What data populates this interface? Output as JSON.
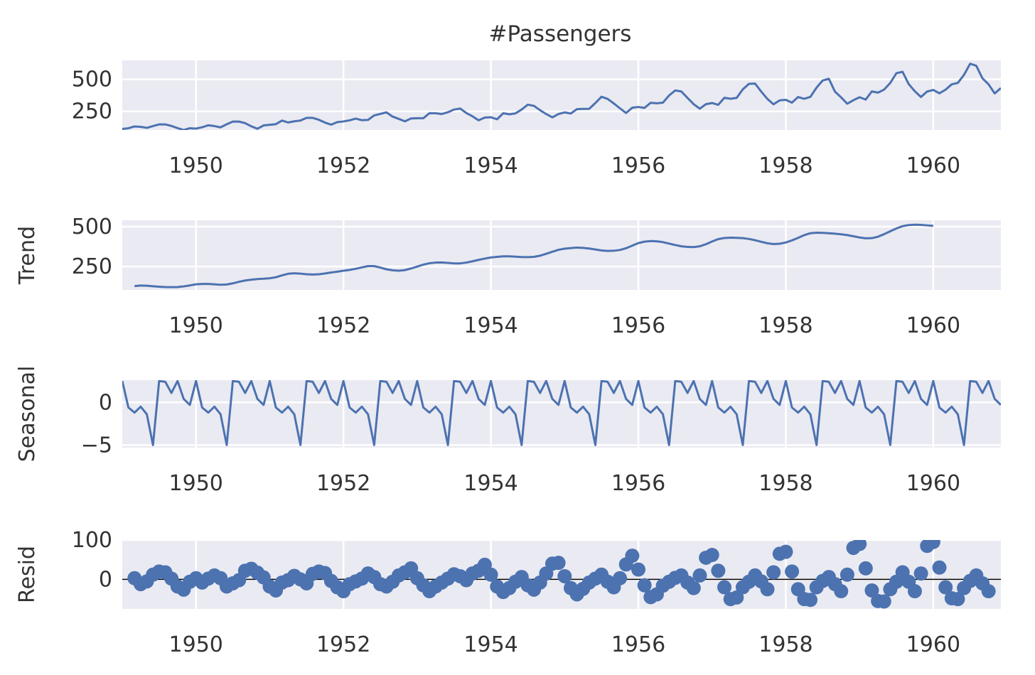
{
  "title": "#Passengers",
  "colors": {
    "line": "#4c72b0",
    "panel_bg": "#eaeaf2",
    "grid": "#ffffff",
    "zero_line": "#000000"
  },
  "chart_data": [
    {
      "type": "line",
      "ylabel": "",
      "xlim": [
        1949,
        1960.917
      ],
      "ylim": [
        104,
        648
      ],
      "x_ticks": [
        1950,
        1952,
        1954,
        1956,
        1958,
        1960
      ],
      "x_tick_labels": [
        "1950",
        "1952",
        "1954",
        "1956",
        "1958",
        "1960"
      ],
      "y_ticks": [
        250,
        500
      ],
      "y_tick_labels": [
        "250",
        "500"
      ],
      "grid": true,
      "x_start": "1949-01",
      "x_step": "month",
      "values": [
        112,
        118,
        132,
        129,
        121,
        135,
        148,
        148,
        136,
        119,
        104,
        118,
        115,
        126,
        141,
        135,
        125,
        149,
        170,
        170,
        158,
        133,
        114,
        140,
        145,
        150,
        178,
        163,
        172,
        178,
        199,
        199,
        184,
        162,
        146,
        166,
        171,
        180,
        193,
        181,
        183,
        218,
        230,
        242,
        209,
        191,
        172,
        194,
        196,
        196,
        236,
        235,
        229,
        243,
        264,
        272,
        237,
        211,
        180,
        201,
        204,
        188,
        235,
        227,
        234,
        264,
        302,
        293,
        259,
        229,
        203,
        229,
        242,
        233,
        267,
        269,
        270,
        315,
        364,
        347,
        312,
        274,
        237,
        278,
        284,
        277,
        317,
        313,
        318,
        374,
        413,
        405,
        355,
        306,
        271,
        306,
        315,
        301,
        356,
        348,
        355,
        422,
        465,
        467,
        404,
        347,
        305,
        336,
        340,
        318,
        362,
        348,
        363,
        435,
        491,
        505,
        404,
        359,
        310,
        337,
        360,
        342,
        406,
        396,
        420,
        472,
        548,
        559,
        463,
        407,
        362,
        405,
        417,
        391,
        419,
        461,
        472,
        535,
        622,
        606,
        508,
        461,
        390,
        432
      ]
    },
    {
      "type": "line",
      "ylabel": "Trend",
      "xlim": [
        1949,
        1960.917
      ],
      "ylim": [
        104,
        540
      ],
      "x_ticks": [
        1950,
        1952,
        1954,
        1956,
        1958,
        1960
      ],
      "x_tick_labels": [
        "1950",
        "1952",
        "1954",
        "1956",
        "1958",
        "1960"
      ],
      "y_ticks": [
        250,
        500
      ],
      "y_tick_labels": [
        "250",
        "500"
      ],
      "grid": true,
      "x_start": "1949-03",
      "x_step": "month",
      "values": [
        128,
        131,
        130,
        127,
        124,
        122,
        121,
        122,
        126,
        132,
        139,
        141,
        141,
        139,
        136,
        138,
        145,
        155,
        163,
        168,
        172,
        174,
        177,
        183,
        195,
        205,
        208,
        206,
        202,
        200,
        202,
        207,
        213,
        218,
        224,
        229,
        236,
        245,
        253,
        253,
        244,
        233,
        227,
        224,
        228,
        238,
        250,
        262,
        271,
        275,
        276,
        273,
        270,
        270,
        275,
        283,
        292,
        300,
        307,
        311,
        314,
        314,
        312,
        310,
        309,
        311,
        318,
        330,
        343,
        355,
        362,
        366,
        369,
        367,
        363,
        357,
        351,
        348,
        349,
        354,
        365,
        381,
        397,
        406,
        410,
        408,
        403,
        394,
        385,
        377,
        373,
        372,
        377,
        390,
        407,
        422,
        429,
        431,
        430,
        428,
        423,
        415,
        405,
        396,
        391,
        393,
        401,
        414,
        430,
        447,
        459,
        462,
        461,
        459,
        456,
        452,
        447,
        440,
        432,
        427,
        428,
        437,
        453,
        471,
        489,
        503,
        510,
        512,
        511,
        508,
        505
      ]
    },
    {
      "type": "line",
      "ylabel": "Seasonal",
      "xlim": [
        1949,
        1960.917
      ],
      "ylim": [
        -5.3,
        2.6
      ],
      "x_ticks": [
        1950,
        1952,
        1954,
        1956,
        1958,
        1960
      ],
      "x_tick_labels": [
        "1950",
        "1952",
        "1954",
        "1956",
        "1958",
        "1960"
      ],
      "y_ticks": [
        -5,
        0
      ],
      "y_tick_labels": [
        "−5",
        "0"
      ],
      "grid": true,
      "x_start": "1949-01",
      "x_step": "month",
      "values": [
        2.5,
        -0.6,
        -1.2,
        -0.5,
        -1.4,
        -5.0,
        2.5,
        2.4,
        1.1,
        2.5,
        0.4,
        -0.3,
        2.5,
        -0.6,
        -1.2,
        -0.5,
        -1.4,
        -5.0,
        2.5,
        2.4,
        1.1,
        2.5,
        0.4,
        -0.3,
        2.5,
        -0.6,
        -1.2,
        -0.5,
        -1.4,
        -5.0,
        2.5,
        2.4,
        1.1,
        2.5,
        0.4,
        -0.3,
        2.5,
        -0.6,
        -1.2,
        -0.5,
        -1.4,
        -5.0,
        2.5,
        2.4,
        1.1,
        2.5,
        0.4,
        -0.3,
        2.5,
        -0.6,
        -1.2,
        -0.5,
        -1.4,
        -5.0,
        2.5,
        2.4,
        1.1,
        2.5,
        0.4,
        -0.3,
        2.5,
        -0.6,
        -1.2,
        -0.5,
        -1.4,
        -5.0,
        2.5,
        2.4,
        1.1,
        2.5,
        0.4,
        -0.3,
        2.5,
        -0.6,
        -1.2,
        -0.5,
        -1.4,
        -5.0,
        2.5,
        2.4,
        1.1,
        2.5,
        0.4,
        -0.3,
        2.5,
        -0.6,
        -1.2,
        -0.5,
        -1.4,
        -5.0,
        2.5,
        2.4,
        1.1,
        2.5,
        0.4,
        -0.3,
        2.5,
        -0.6,
        -1.2,
        -0.5,
        -1.4,
        -5.0,
        2.5,
        2.4,
        1.1,
        2.5,
        0.4,
        -0.3,
        2.5,
        -0.6,
        -1.2,
        -0.5,
        -1.4,
        -5.0,
        2.5,
        2.4,
        1.1,
        2.5,
        0.4,
        -0.3,
        2.5,
        -0.6,
        -1.2,
        -0.5,
        -1.4,
        -5.0,
        2.5,
        2.4,
        1.1,
        2.5,
        0.4,
        -0.3,
        2.5,
        -0.6,
        -1.2,
        -0.5,
        -1.4,
        -5.0,
        2.5,
        2.4,
        1.1,
        2.5,
        0.4,
        -0.3
      ]
    },
    {
      "type": "scatter",
      "ylabel": "Resid",
      "xlim": [
        1949,
        1960.917
      ],
      "ylim": [
        -75,
        100
      ],
      "x_ticks": [
        1950,
        1952,
        1954,
        1956,
        1958,
        1960
      ],
      "x_tick_labels": [
        "1950",
        "1952",
        "1954",
        "1956",
        "1958",
        "1960"
      ],
      "y_ticks": [
        0,
        100
      ],
      "y_tick_labels": [
        "0",
        "100"
      ],
      "grid": true,
      "zero_line": true,
      "x_start": "1949-03",
      "x_step": "month",
      "values": [
        3,
        -12,
        -5,
        12,
        20,
        18,
        2,
        -18,
        -26,
        -6,
        3,
        -8,
        2,
        10,
        3,
        -18,
        -10,
        -2,
        22,
        27,
        17,
        5,
        -18,
        -28,
        -8,
        -2,
        9,
        0,
        -10,
        14,
        20,
        16,
        -4,
        -20,
        -30,
        -12,
        -5,
        2,
        15,
        6,
        -12,
        -18,
        -6,
        10,
        18,
        28,
        3,
        -15,
        -30,
        -18,
        -8,
        2,
        13,
        8,
        -2,
        15,
        22,
        37,
        12,
        -18,
        -32,
        -22,
        -6,
        6,
        -15,
        -26,
        -8,
        15,
        40,
        42,
        8,
        -22,
        -38,
        -24,
        -8,
        2,
        12,
        -6,
        -20,
        3,
        38,
        60,
        25,
        -15,
        -45,
        -38,
        -16,
        -6,
        4,
        10,
        -8,
        -22,
        10,
        55,
        62,
        22,
        -20,
        -50,
        -46,
        -20,
        -6,
        10,
        -5,
        -25,
        18,
        65,
        70,
        20,
        -25,
        -50,
        -52,
        -20,
        -4,
        6,
        -12,
        -30,
        12,
        80,
        90,
        28,
        -28,
        -55,
        -56,
        -25,
        -6,
        18,
        -6,
        -30,
        15,
        85,
        95,
        30,
        -20,
        -48,
        -50,
        -22,
        -4,
        10,
        -10,
        -30
      ]
    }
  ]
}
